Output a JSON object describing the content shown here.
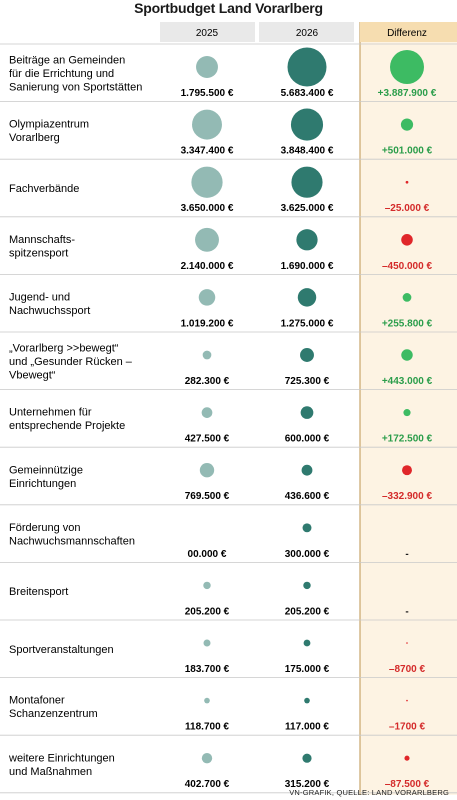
{
  "title": "Sportbudget Land Vorarlberg",
  "source": "VN-GRAFIK, QUELLE: LAND VORARLBERG",
  "colors": {
    "col_2025": "#93bab4",
    "col_2026": "#2f7a6f",
    "pos": "#3dbb63",
    "neg": "#e0262a",
    "val_pos": "#2a9d4a",
    "val_neg": "#d42a2a",
    "header_bg": "#e9e9e9",
    "diff_header_bg": "#f6ddb0",
    "diff_col_bg": "#fdf3e3",
    "diff_border": "#c8a56b"
  },
  "chart_data": {
    "type": "table",
    "title": "Sportbudget Land Vorarlberg",
    "columns": [
      "2025",
      "2026",
      "Differenz"
    ],
    "rows": [
      {
        "label": [
          "Beiträge an Gemeinden",
          "für die Errichtung und",
          "Sanierung von Sportstätten"
        ],
        "v2025": 1795500,
        "v2026": 5683400,
        "diff": 3887900,
        "t2025": "1.795.500 €",
        "t2026": "5.683.400 €",
        "tdiff": "+3.887.900 €"
      },
      {
        "label": [
          "Olympiazentrum",
          "Vorarlberg"
        ],
        "v2025": 3347400,
        "v2026": 3848400,
        "diff": 501000,
        "t2025": "3.347.400 €",
        "t2026": "3.848.400 €",
        "tdiff": "+501.000 €"
      },
      {
        "label": [
          "Fachverbände"
        ],
        "v2025": 3650000,
        "v2026": 3625000,
        "diff": -25000,
        "t2025": "3.650.000 €",
        "t2026": "3.625.000 €",
        "tdiff": "–25.000 €"
      },
      {
        "label": [
          "Mannschafts-",
          "spitzensport"
        ],
        "v2025": 2140000,
        "v2026": 1690000,
        "diff": -450000,
        "t2025": "2.140.000 €",
        "t2026": "1.690.000 €",
        "tdiff": "–450.000 €"
      },
      {
        "label": [
          "Jugend- und",
          "Nachwuchssport"
        ],
        "v2025": 1019200,
        "v2026": 1275000,
        "diff": 255800,
        "t2025": "1.019.200 €",
        "t2026": "1.275.000 €",
        "tdiff": "+255.800 €"
      },
      {
        "label": [
          "„Vorarlberg >>bewegt“",
          "und „Gesunder Rücken –",
          "Vbewegt“"
        ],
        "v2025": 282300,
        "v2026": 725300,
        "diff": 443000,
        "t2025": "282.300 €",
        "t2026": "725.300 €",
        "tdiff": "+443.000 €"
      },
      {
        "label": [
          "Unternehmen für",
          "entsprechende Projekte"
        ],
        "v2025": 427500,
        "v2026": 600000,
        "diff": 172500,
        "t2025": "427.500 €",
        "t2026": "600.000 €",
        "tdiff": "+172.500 €"
      },
      {
        "label": [
          "Gemeinnützige",
          "Einrichtungen"
        ],
        "v2025": 769500,
        "v2026": 436600,
        "diff": -332900,
        "t2025": "769.500 €",
        "t2026": "436.600 €",
        "tdiff": "–332.900 €"
      },
      {
        "label": [
          "Förderung von",
          "Nachwuchsmannschaften"
        ],
        "v2025": 0,
        "v2026": 300000,
        "diff": null,
        "t2025": "00.000 €",
        "t2026": "300.000 €",
        "tdiff": "-"
      },
      {
        "label": [
          "Breitensport"
        ],
        "v2025": 205200,
        "v2026": 205200,
        "diff": null,
        "t2025": "205.200 €",
        "t2026": "205.200 €",
        "tdiff": "-"
      },
      {
        "label": [
          "Sportveranstaltungen"
        ],
        "v2025": 183700,
        "v2026": 175000,
        "diff": -8700,
        "t2025": "183.700 €",
        "t2026": "175.000 €",
        "tdiff": "–8700 €"
      },
      {
        "label": [
          "Montafoner",
          "Schanzenzentrum"
        ],
        "v2025": 118700,
        "v2026": 117000,
        "diff": -1700,
        "t2025": "118.700 €",
        "t2026": "117.000 €",
        "tdiff": "–1700 €"
      },
      {
        "label": [
          "weitere Einrichtungen",
          "und Maßnahmen"
        ],
        "v2025": 402700,
        "v2026": 315200,
        "diff": -87500,
        "t2025": "402.700 €",
        "t2026": "315.200 €",
        "tdiff": "–87.500 €"
      }
    ]
  }
}
